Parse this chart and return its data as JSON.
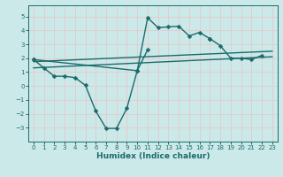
{
  "background_color": "#cce9e9",
  "grid_color": "#e8c8c8",
  "line_color": "#1a6b6b",
  "x_label": "Humidex (Indice chaleur)",
  "xlim": [
    -0.5,
    23.5
  ],
  "ylim": [
    -4.0,
    5.8
  ],
  "xticks": [
    0,
    1,
    2,
    3,
    4,
    5,
    6,
    7,
    8,
    9,
    10,
    11,
    12,
    13,
    14,
    15,
    16,
    17,
    18,
    19,
    20,
    21,
    22,
    23
  ],
  "yticks": [
    -3,
    -2,
    -1,
    0,
    1,
    2,
    3,
    4,
    5
  ],
  "series": [
    {
      "x": [
        0,
        1,
        2,
        3,
        4,
        5,
        6,
        7,
        8,
        9,
        10,
        11
      ],
      "y": [
        1.9,
        1.3,
        0.7,
        0.7,
        0.6,
        0.05,
        -1.8,
        -3.05,
        -3.05,
        -1.6,
        1.1,
        2.6
      ],
      "marker": "D",
      "markersize": 2.5,
      "linewidth": 1.0
    },
    {
      "x": [
        0,
        10,
        11,
        12,
        13,
        14,
        15,
        16,
        17
      ],
      "y": [
        1.9,
        1.1,
        4.9,
        4.2,
        4.25,
        4.3,
        3.6,
        3.85,
        3.4
      ],
      "marker": "D",
      "markersize": 2.5,
      "linewidth": 1.0
    },
    {
      "x": [
        17,
        18,
        19,
        20,
        21,
        22
      ],
      "y": [
        3.4,
        2.9,
        2.0,
        2.0,
        1.9,
        2.2
      ],
      "marker": "D",
      "markersize": 2.5,
      "linewidth": 1.0
    },
    {
      "x": [
        0,
        23
      ],
      "y": [
        1.75,
        2.5
      ],
      "marker": null,
      "markersize": 0,
      "linewidth": 1.0,
      "linestyle": "-"
    },
    {
      "x": [
        0,
        23
      ],
      "y": [
        1.3,
        2.1
      ],
      "marker": null,
      "markersize": 0,
      "linewidth": 1.0,
      "linestyle": "-"
    }
  ]
}
